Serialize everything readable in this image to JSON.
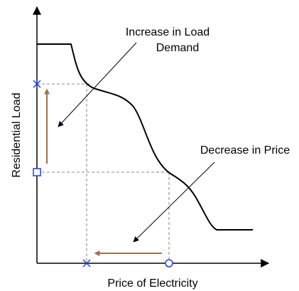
{
  "axes": {
    "x_label": "Price of Electricity",
    "y_label": "Residential Load"
  },
  "annotations": [
    {
      "lines": [
        "Increase in Load",
        "Demand"
      ]
    },
    {
      "lines": [
        "Decrease in Price"
      ]
    }
  ]
}
